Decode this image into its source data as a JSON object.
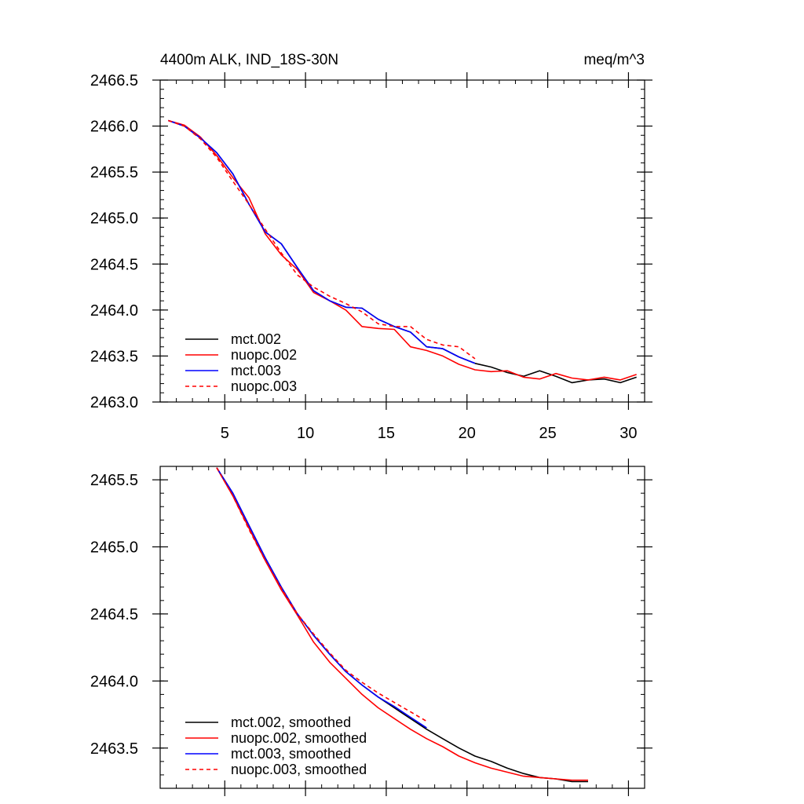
{
  "chart_data": [
    {
      "type": "line",
      "title": "4400m ALK, IND_18S-30N",
      "units": "meq/m^3",
      "xlim": [
        1,
        31
      ],
      "ylim": [
        2463.0,
        2466.5
      ],
      "xticks": [
        5,
        10,
        15,
        20,
        25,
        30
      ],
      "xtick_labels": [
        "5",
        "10",
        "15",
        "20",
        "25",
        "30"
      ],
      "yticks": [
        2463.0,
        2463.5,
        2464.0,
        2464.5,
        2465.0,
        2465.5,
        2466.0,
        2466.5
      ],
      "ytick_labels": [
        "2463.0",
        "2463.5",
        "2464.0",
        "2464.5",
        "2465.0",
        "2465.5",
        "2466.0",
        "2466.5"
      ],
      "legend_position": "bottom-left",
      "series": [
        {
          "name": "mct.002",
          "color": "#000000",
          "dash": "solid",
          "x": [
            1.5,
            2.5,
            3.5,
            4.5,
            5.5,
            6.5,
            7.5,
            8.5,
            9.5,
            10.5,
            11.5,
            12.5,
            13.5,
            14.5,
            15.5,
            16.5,
            17.5,
            18.5,
            19.5,
            20.5,
            21.5,
            22.5,
            23.5,
            24.5,
            25.5,
            26.5,
            27.5,
            28.5,
            29.5,
            30.5
          ],
          "y": [
            2466.06,
            2466.0,
            2465.87,
            2465.71,
            2465.48,
            2465.15,
            2464.85,
            2464.72,
            2464.46,
            2464.21,
            2464.1,
            2464.03,
            2464.02,
            2463.9,
            2463.82,
            2463.76,
            2463.6,
            2463.58,
            2463.49,
            2463.42,
            2463.38,
            2463.32,
            2463.28,
            2463.34,
            2463.28,
            2463.21,
            2463.24,
            2463.25,
            2463.21,
            2463.27
          ]
        },
        {
          "name": "nuopc.002",
          "color": "#ff0000",
          "dash": "solid",
          "x": [
            1.5,
            2.5,
            3.5,
            4.5,
            5.5,
            6.5,
            7.5,
            8.5,
            9.5,
            10.5,
            11.5,
            12.5,
            13.5,
            14.5,
            15.5,
            16.5,
            17.5,
            18.5,
            19.5,
            20.5,
            21.5,
            22.5,
            23.5,
            24.5,
            25.5,
            26.5,
            27.5,
            28.5,
            29.5,
            30.5
          ],
          "y": [
            2466.06,
            2466.01,
            2465.88,
            2465.68,
            2465.44,
            2465.22,
            2464.83,
            2464.6,
            2464.44,
            2464.19,
            2464.1,
            2464.0,
            2463.82,
            2463.8,
            2463.79,
            2463.6,
            2463.56,
            2463.5,
            2463.41,
            2463.35,
            2463.33,
            2463.34,
            2463.27,
            2463.25,
            2463.31,
            2463.26,
            2463.24,
            2463.27,
            2463.24,
            2463.3
          ]
        },
        {
          "name": "mct.003",
          "color": "#0000ff",
          "dash": "solid",
          "x": [
            1.5,
            2.5,
            3.5,
            4.5,
            5.5,
            6.5,
            7.5,
            8.5,
            9.5,
            10.5,
            11.5,
            12.5,
            13.5,
            14.5,
            15.5,
            16.5,
            17.5,
            18.5,
            19.5,
            20.5
          ],
          "y": [
            2466.06,
            2466.0,
            2465.87,
            2465.71,
            2465.48,
            2465.15,
            2464.85,
            2464.72,
            2464.46,
            2464.21,
            2464.1,
            2464.03,
            2464.02,
            2463.9,
            2463.82,
            2463.76,
            2463.6,
            2463.58,
            2463.49,
            2463.42
          ]
        },
        {
          "name": "nuopc.003",
          "color": "#ff0000",
          "dash": "dashed",
          "x": [
            1.5,
            2.5,
            3.5,
            4.5,
            5.5,
            6.5,
            7.5,
            8.5,
            9.5,
            10.5,
            11.5,
            12.5,
            13.5,
            14.5,
            15.5,
            16.5,
            17.5,
            18.5,
            19.5,
            20.5
          ],
          "y": [
            2466.06,
            2466.0,
            2465.86,
            2465.66,
            2465.4,
            2465.15,
            2464.88,
            2464.62,
            2464.38,
            2464.25,
            2464.15,
            2464.07,
            2463.98,
            2463.85,
            2463.82,
            2463.82,
            2463.68,
            2463.62,
            2463.6,
            2463.47
          ]
        }
      ]
    },
    {
      "type": "line",
      "title": "",
      "xlim": [
        1,
        31
      ],
      "ylim": [
        2463.2,
        2465.6
      ],
      "xticks": [
        5,
        10,
        15,
        20,
        25,
        30
      ],
      "xtick_labels": [],
      "yticks": [
        2463.5,
        2464.0,
        2464.5,
        2465.0,
        2465.5
      ],
      "ytick_labels": [
        "2463.5",
        "2464.0",
        "2464.5",
        "2465.0",
        "2465.5"
      ],
      "legend_position": "bottom-left",
      "series": [
        {
          "name": "mct.002, smoothed",
          "color": "#000000",
          "dash": "solid",
          "x": [
            4.5,
            5.5,
            6.5,
            7.5,
            8.5,
            9.5,
            10.5,
            11.5,
            12.5,
            13.5,
            14.5,
            15.5,
            16.5,
            17.5,
            18.5,
            19.5,
            20.5,
            21.5,
            22.5,
            23.5,
            24.5,
            25.5,
            26.5,
            27.5
          ],
          "y": [
            2465.59,
            2465.4,
            2465.16,
            2464.92,
            2464.7,
            2464.5,
            2464.34,
            2464.2,
            2464.07,
            2463.97,
            2463.88,
            2463.8,
            2463.72,
            2463.64,
            2463.57,
            2463.5,
            2463.44,
            2463.4,
            2463.35,
            2463.31,
            2463.28,
            2463.27,
            2463.25,
            2463.25
          ]
        },
        {
          "name": "nuopc.002, smoothed",
          "color": "#ff0000",
          "dash": "solid",
          "x": [
            4.5,
            5.5,
            6.5,
            7.5,
            8.5,
            9.5,
            10.5,
            11.5,
            12.5,
            13.5,
            14.5,
            15.5,
            16.5,
            17.5,
            18.5,
            19.5,
            20.5,
            21.5,
            22.5,
            23.5,
            24.5,
            25.5,
            26.5,
            27.5
          ],
          "y": [
            2465.59,
            2465.38,
            2465.14,
            2464.9,
            2464.68,
            2464.49,
            2464.29,
            2464.14,
            2464.02,
            2463.9,
            2463.8,
            2463.72,
            2463.64,
            2463.57,
            2463.51,
            2463.44,
            2463.39,
            2463.35,
            2463.32,
            2463.29,
            2463.28,
            2463.27,
            2463.26,
            2463.26
          ]
        },
        {
          "name": "mct.003, smoothed",
          "color": "#0000ff",
          "dash": "solid",
          "x": [
            4.5,
            5.5,
            6.5,
            7.5,
            8.5,
            9.5,
            10.5,
            11.5,
            12.5,
            13.5,
            14.5,
            15.5,
            16.5,
            17.5
          ],
          "y": [
            2465.59,
            2465.4,
            2465.16,
            2464.92,
            2464.7,
            2464.5,
            2464.34,
            2464.2,
            2464.07,
            2463.97,
            2463.88,
            2463.81,
            2463.73,
            2463.65
          ]
        },
        {
          "name": "nuopc.003, smoothed",
          "color": "#ff0000",
          "dash": "dashed",
          "x": [
            4.5,
            5.5,
            6.5,
            7.5,
            8.5,
            9.5,
            10.5,
            11.5,
            12.5,
            13.5,
            14.5,
            15.5,
            16.5,
            17.5
          ],
          "y": [
            2465.59,
            2465.38,
            2465.13,
            2464.9,
            2464.69,
            2464.5,
            2464.35,
            2464.21,
            2464.08,
            2463.99,
            2463.91,
            2463.84,
            2463.77,
            2463.7
          ]
        }
      ]
    }
  ]
}
